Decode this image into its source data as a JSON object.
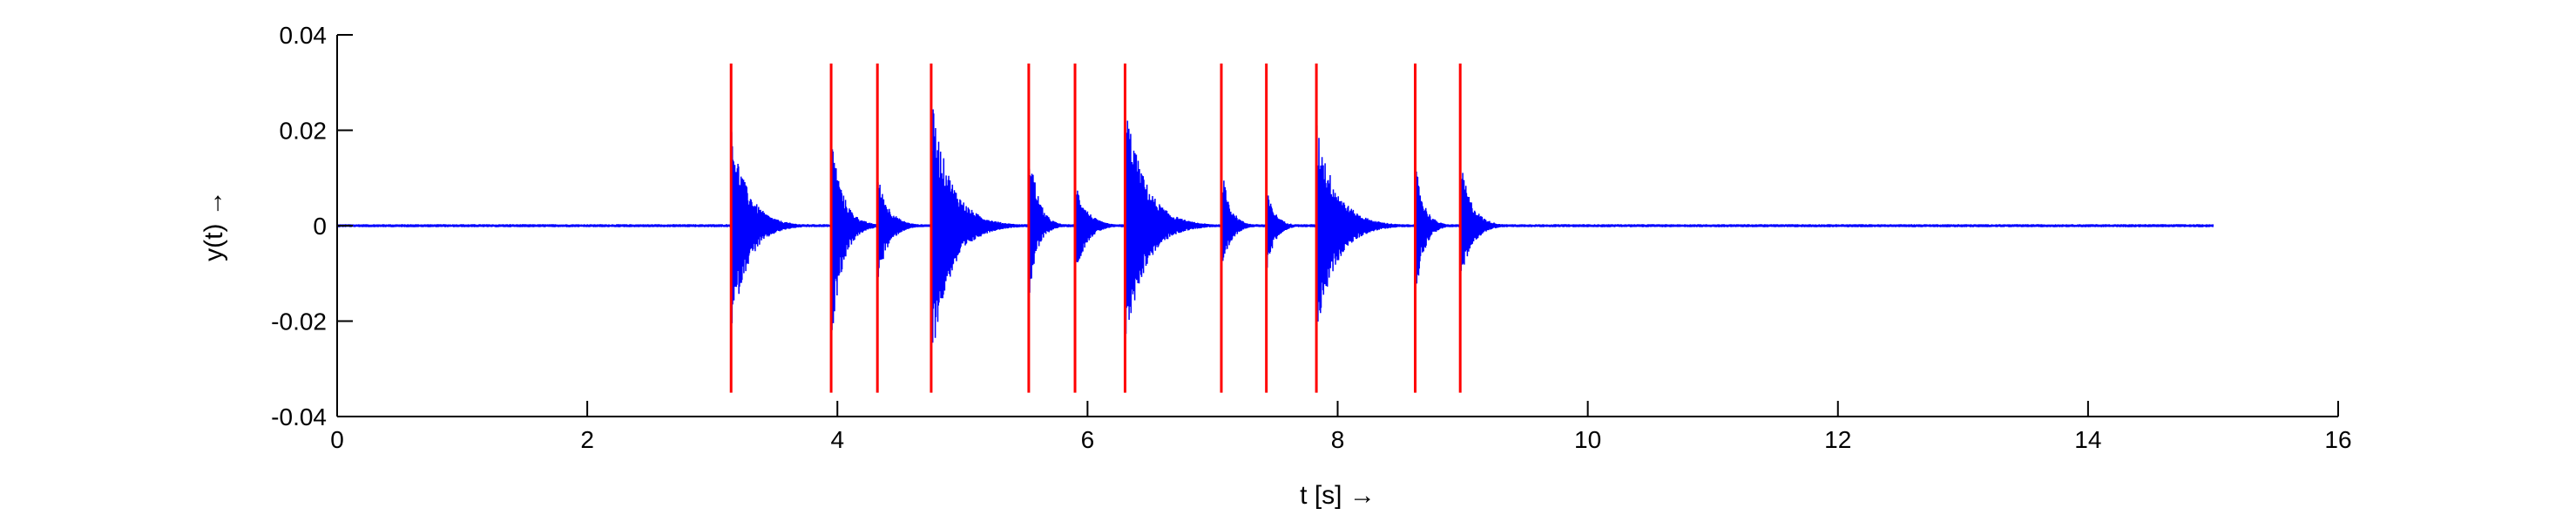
{
  "chart_data": {
    "type": "line",
    "title": "",
    "xlabel": "t [s] →",
    "ylabel": "y(t) →",
    "xlim": [
      0,
      16
    ],
    "ylim": [
      -0.04,
      0.04
    ],
    "xticks": [
      0,
      2,
      4,
      6,
      8,
      10,
      12,
      14,
      16
    ],
    "xtick_labels": [
      "0",
      "2",
      "4",
      "6",
      "8",
      "10",
      "12",
      "14",
      "16"
    ],
    "yticks": [
      -0.04,
      -0.02,
      0,
      0.02,
      0.04
    ],
    "ytick_labels": [
      "-0.04",
      "-0.02",
      "0",
      "0.02",
      "0.04"
    ],
    "grid": false,
    "box": false,
    "series": [
      {
        "color": "#0000ff",
        "x_start": 0,
        "x_end": 15.0,
        "envelope_segments": [
          {
            "onset": 3.15,
            "peak": 0.021,
            "trough": -0.023,
            "decay_duration": 0.6
          },
          {
            "onset": 3.95,
            "peak": 0.02,
            "trough": -0.025,
            "decay_duration": 0.4
          },
          {
            "onset": 4.32,
            "peak": 0.011,
            "trough": -0.012,
            "decay_duration": 0.4
          },
          {
            "onset": 4.75,
            "peak": 0.027,
            "trough": -0.029,
            "decay_duration": 0.7
          },
          {
            "onset": 5.53,
            "peak": 0.02,
            "trough": -0.016,
            "decay_duration": 0.3
          },
          {
            "onset": 5.9,
            "peak": 0.01,
            "trough": -0.011,
            "decay_duration": 0.4
          },
          {
            "onset": 6.3,
            "peak": 0.027,
            "trough": -0.026,
            "decay_duration": 0.7
          },
          {
            "onset": 7.07,
            "peak": 0.013,
            "trough": -0.012,
            "decay_duration": 0.3
          },
          {
            "onset": 7.43,
            "peak": 0.008,
            "trough": -0.01,
            "decay_duration": 0.3
          },
          {
            "onset": 7.83,
            "peak": 0.022,
            "trough": -0.023,
            "decay_duration": 0.7
          },
          {
            "onset": 8.62,
            "peak": 0.014,
            "trough": -0.016,
            "decay_duration": 0.3
          },
          {
            "onset": 8.98,
            "peak": 0.014,
            "trough": -0.013,
            "decay_duration": 0.4
          }
        ]
      }
    ],
    "markers": {
      "color": "#ff0000",
      "y_range": [
        -0.035,
        0.034
      ],
      "x": [
        3.15,
        3.95,
        4.32,
        4.75,
        5.53,
        5.9,
        6.3,
        7.07,
        7.43,
        7.83,
        8.62,
        8.98
      ]
    }
  }
}
